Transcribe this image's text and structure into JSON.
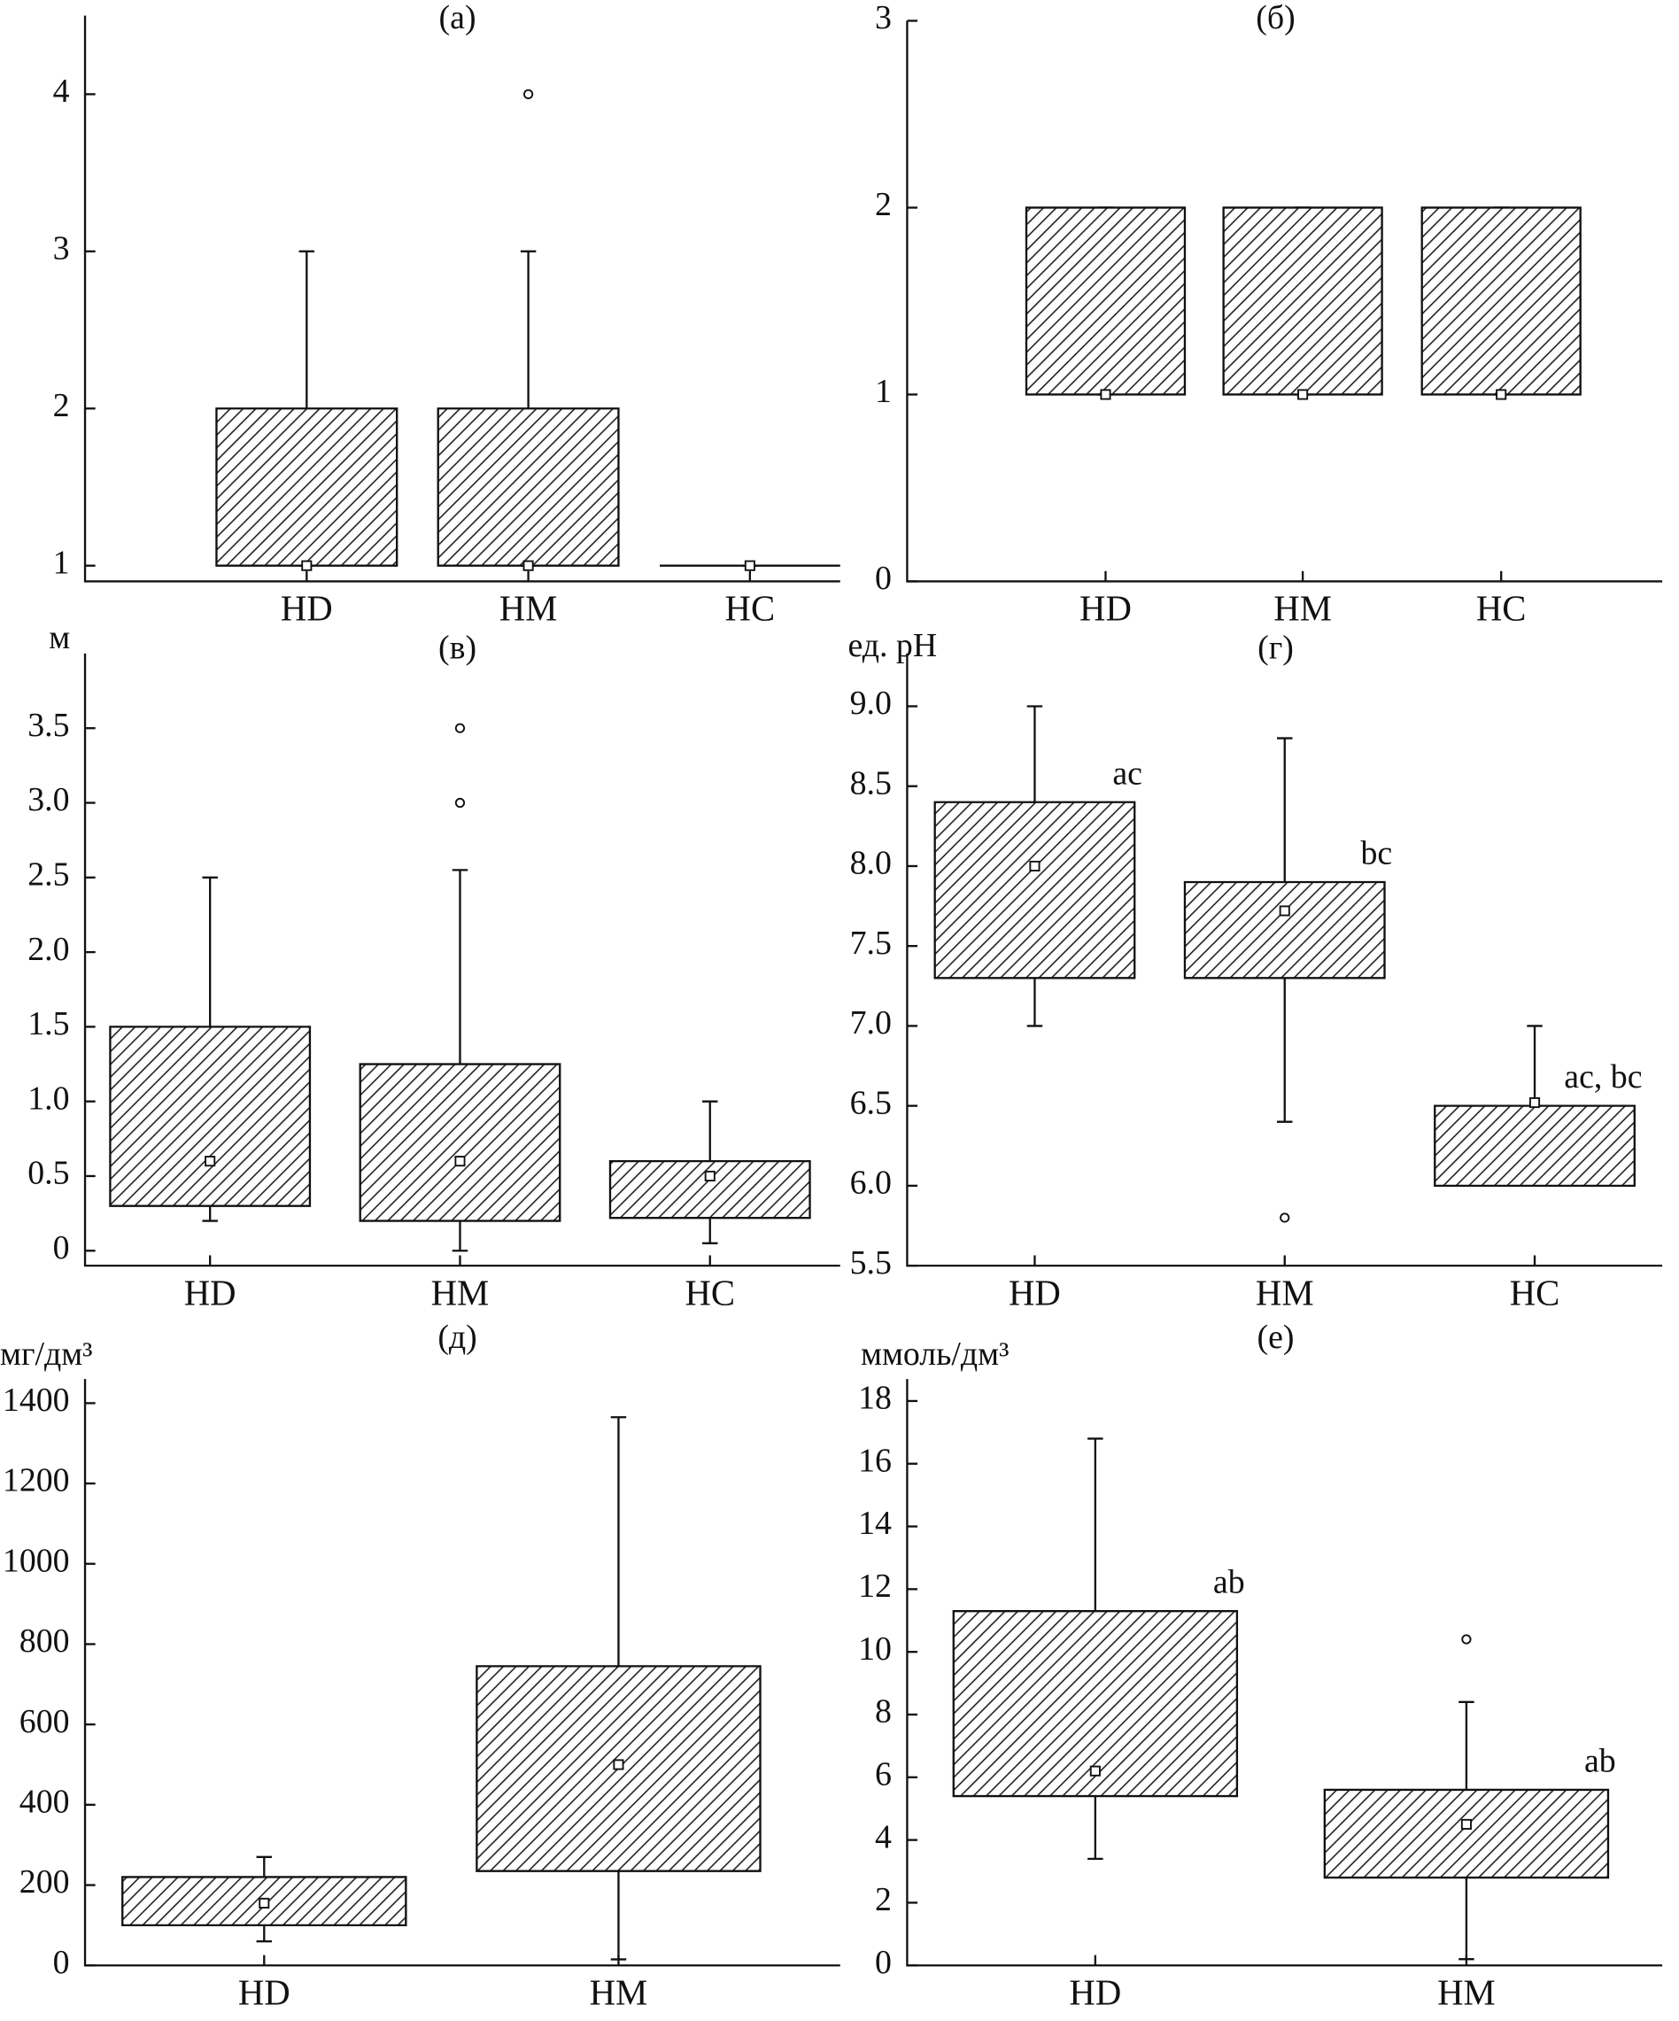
{
  "chart_data": [
    {
      "type": "box",
      "title": "(а)",
      "categories": [
        "HD",
        "HM",
        "HC"
      ],
      "low": [
        1,
        1,
        1
      ],
      "q1": [
        1,
        1,
        1
      ],
      "median": [
        1,
        1,
        1
      ],
      "q3": [
        2,
        2,
        1
      ],
      "high": [
        3,
        3,
        1
      ],
      "outliers": [
        [],
        [
          4
        ],
        []
      ],
      "ylim": [
        0.9,
        4.5
      ],
      "yticks": [
        1,
        2,
        3,
        4
      ]
    },
    {
      "type": "box",
      "title": "(б)",
      "categories": [
        "HD",
        "HM",
        "HC"
      ],
      "low": [
        1,
        1,
        1
      ],
      "q1": [
        1,
        1,
        1
      ],
      "median": [
        1,
        1,
        1
      ],
      "q3": [
        2,
        2,
        2
      ],
      "high": [
        2,
        2,
        2
      ],
      "outliers": [
        [],
        [],
        []
      ],
      "ylim": [
        0,
        3
      ],
      "yticks": [
        0,
        1,
        2,
        3
      ]
    },
    {
      "type": "box",
      "title": "(в)",
      "y_label": "м",
      "categories": [
        "HD",
        "HM",
        "HC"
      ],
      "low": [
        0.2,
        0,
        0.05
      ],
      "q1": [
        0.3,
        0.2,
        0.22
      ],
      "median": [
        0.6,
        0.6,
        0.5
      ],
      "q3": [
        1.5,
        1.25,
        0.6
      ],
      "high": [
        2.5,
        2.55,
        1.0
      ],
      "outliers": [
        [],
        [
          3.0,
          3.5
        ],
        []
      ],
      "ylim": [
        -0.1,
        4.0
      ],
      "yticks": [
        0,
        0.5,
        {
          "value": 1,
          "label": "1.0"
        },
        1.5,
        {
          "value": 2,
          "label": "2.0"
        },
        2.5,
        {
          "value": 3,
          "label": "3.0"
        },
        3.5
      ]
    },
    {
      "type": "box",
      "title": "(г)",
      "y_label": "ед. pH",
      "categories": [
        "HD",
        "HM",
        "HC"
      ],
      "low": [
        7.0,
        6.4,
        6.0
      ],
      "q1": [
        7.3,
        7.3,
        6.0
      ],
      "median": [
        8.0,
        7.72,
        6.52
      ],
      "q3": [
        8.4,
        7.9,
        6.5
      ],
      "high": [
        9.0,
        8.8,
        7.0
      ],
      "outliers": [
        [],
        [
          5.8
        ],
        []
      ],
      "annotations": [
        "ac",
        "bc",
        "ac, bc"
      ],
      "ylim": [
        5.5,
        9.33
      ],
      "yticks": [
        5.5,
        {
          "value": 6,
          "label": "6.0"
        },
        6.5,
        {
          "value": 7,
          "label": "7.0"
        },
        7.5,
        {
          "value": 8,
          "label": "8.0"
        },
        8.5,
        {
          "value": 9,
          "label": "9.0"
        }
      ]
    },
    {
      "type": "box",
      "title": "(д)",
      "y_label": "мг/дм³",
      "categories": [
        "HD",
        "HM"
      ],
      "low": [
        60,
        15
      ],
      "q1": [
        100,
        235
      ],
      "median": [
        155,
        500
      ],
      "q3": [
        220,
        745
      ],
      "high": [
        270,
        1365
      ],
      "outliers": [
        [],
        []
      ],
      "ylim": [
        0,
        1460
      ],
      "yticks": [
        0,
        200,
        400,
        600,
        800,
        1000,
        1200,
        1400
      ]
    },
    {
      "type": "box",
      "title": "(е)",
      "y_label": "ммоль/дм³",
      "categories": [
        "HD",
        "HM"
      ],
      "low": [
        3.4,
        0.2
      ],
      "q1": [
        5.4,
        2.8
      ],
      "median": [
        6.2,
        4.5
      ],
      "q3": [
        11.3,
        5.6
      ],
      "high": [
        16.8,
        8.4
      ],
      "outliers": [
        [],
        [
          10.4
        ]
      ],
      "annotations": [
        "ab",
        "ab"
      ],
      "ylim": [
        0,
        18.7
      ],
      "yticks": [
        0,
        2,
        4,
        6,
        8,
        10,
        12,
        14,
        16,
        18
      ]
    }
  ]
}
